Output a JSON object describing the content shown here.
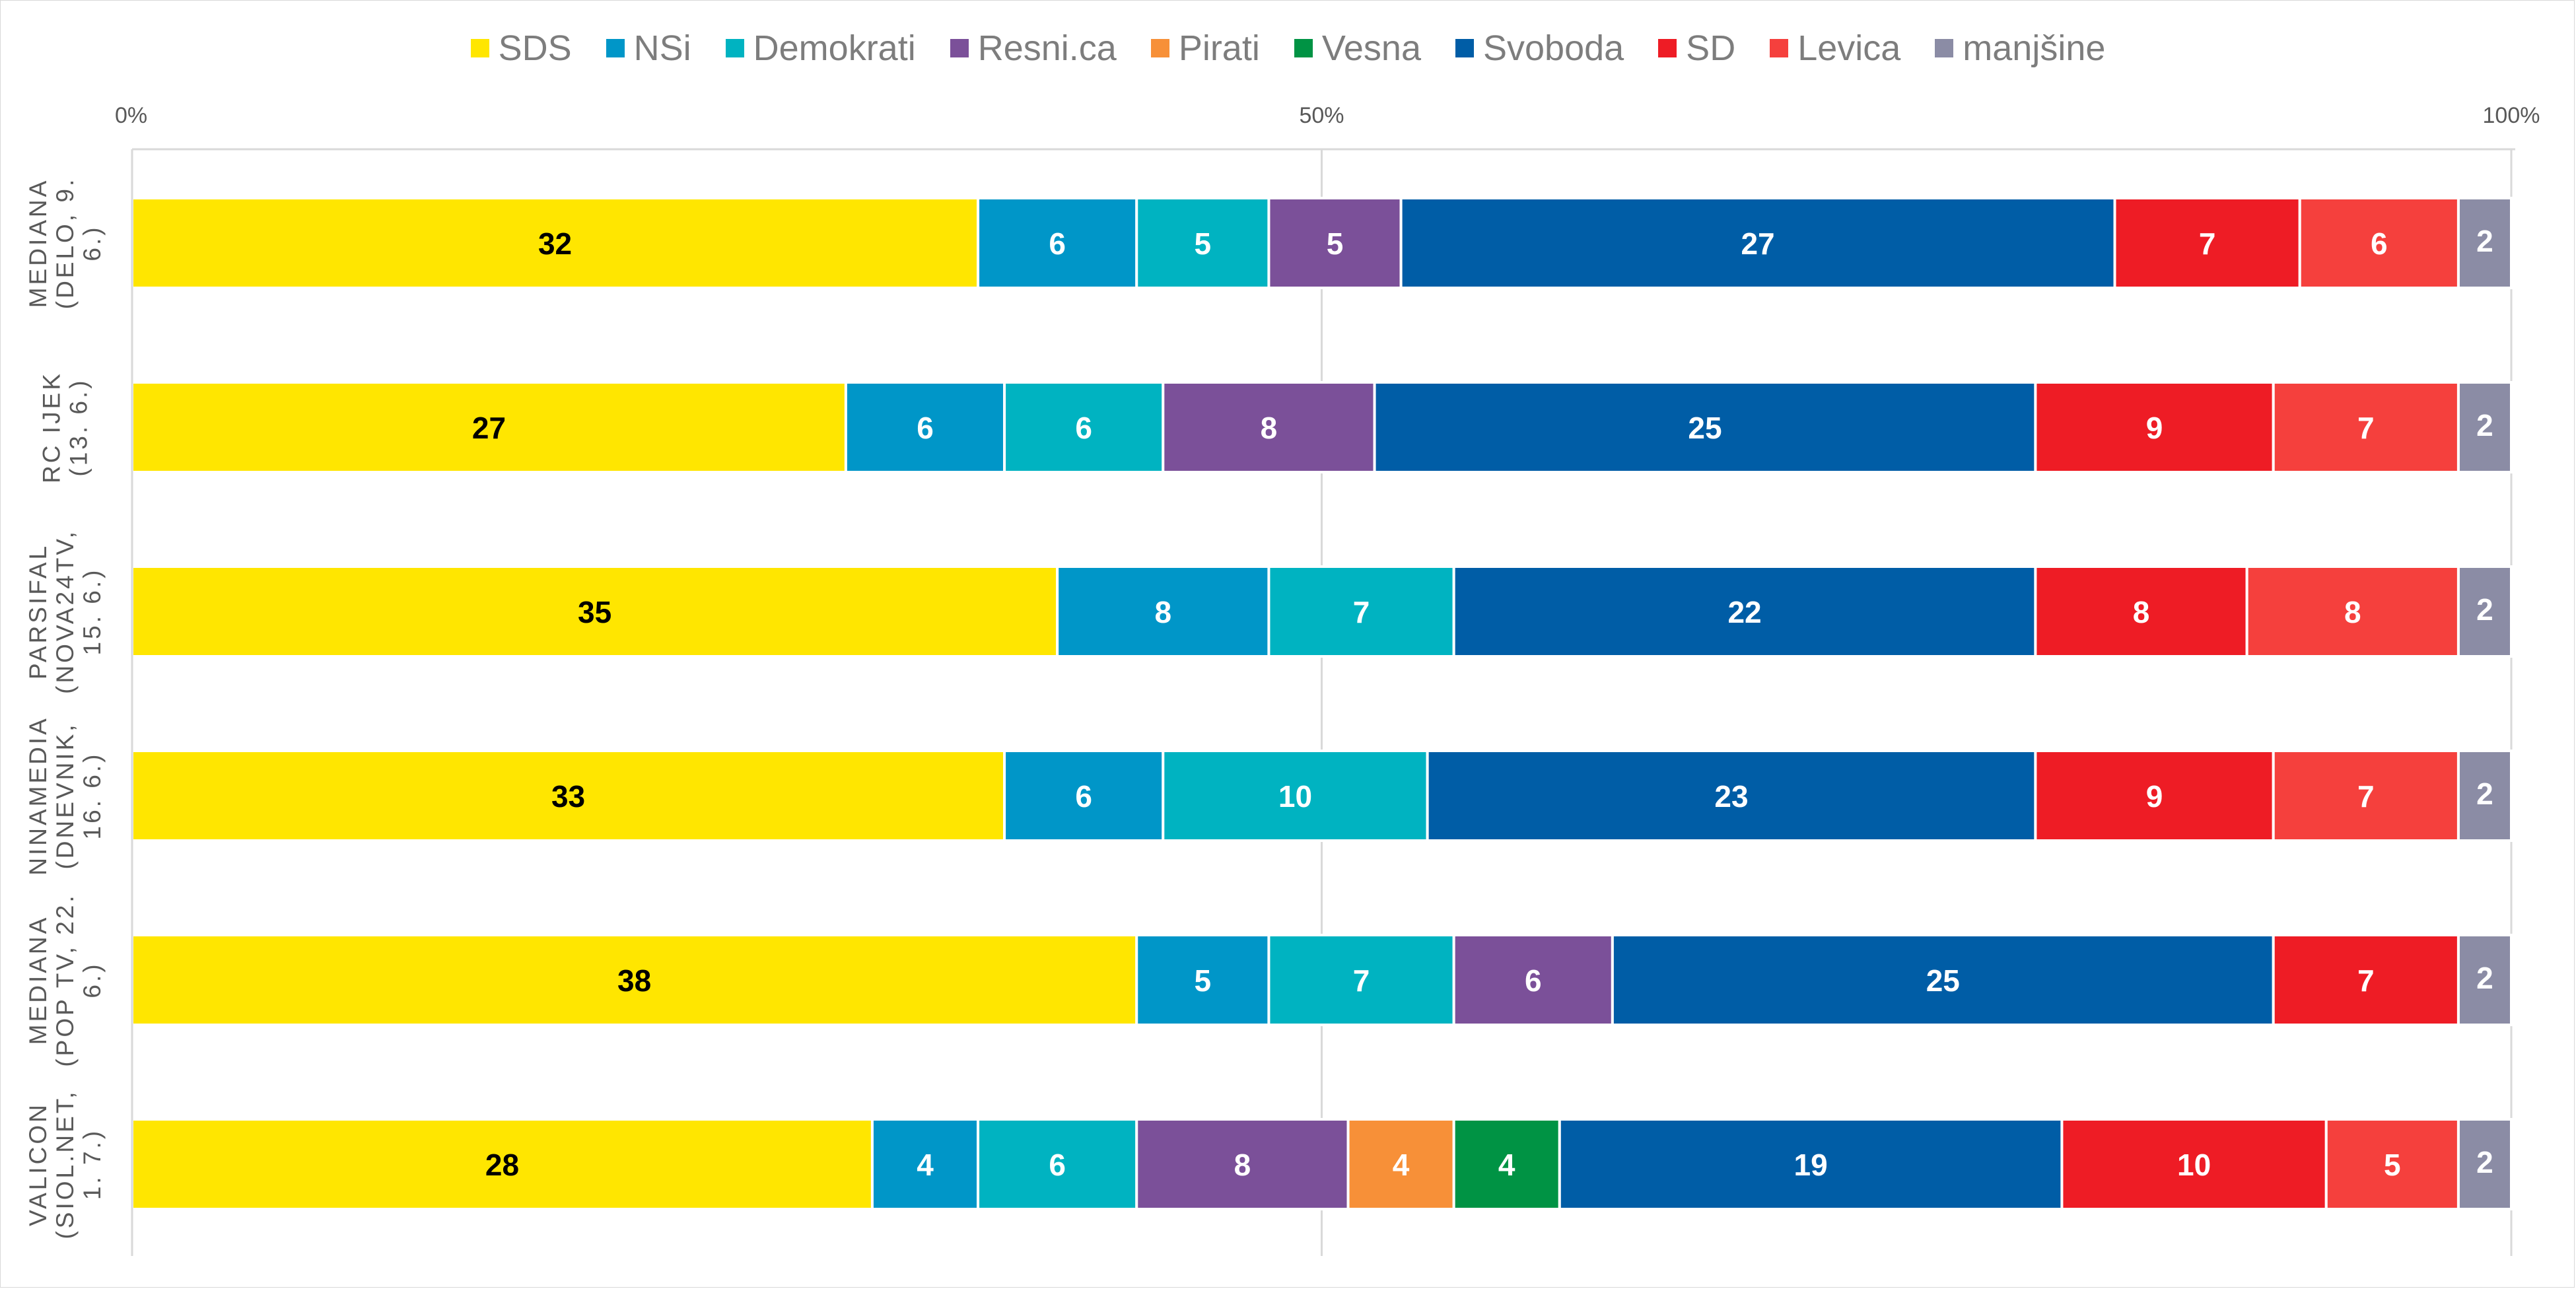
{
  "chart_data": {
    "type": "bar",
    "orientation": "horizontal",
    "stacked": "percent",
    "legend_position": "top",
    "grid": true,
    "xlim": [
      0,
      100
    ],
    "x_ticks": [
      "0%",
      "50%",
      "100%"
    ],
    "categories": [
      [
        "MEDIANA",
        "(DELO, 9.",
        "6.)"
      ],
      [
        "RC IJEK",
        "(13. 6.)"
      ],
      [
        "PARSIFAL",
        "(NOVA24TV,",
        "15. 6.)"
      ],
      [
        "NINAMEDIA",
        "(DNEVNIK,",
        "16. 6.)"
      ],
      [
        "MEDIANA",
        "(POP TV, 22.",
        "6.)"
      ],
      [
        "VALICON",
        "(SIOL.NET,",
        "1. 7.)"
      ]
    ],
    "series": [
      {
        "name": "SDS",
        "color": "#FFE600",
        "label_color": "#000000",
        "values": [
          32,
          27,
          35,
          33,
          38,
          28
        ]
      },
      {
        "name": "NSi",
        "color": "#0096C8",
        "label_color": "#FFFFFF",
        "values": [
          6,
          6,
          8,
          6,
          5,
          4
        ]
      },
      {
        "name": "Demokrati",
        "color": "#00B3C1",
        "label_color": "#FFFFFF",
        "values": [
          5,
          6,
          7,
          10,
          7,
          6
        ]
      },
      {
        "name": "Resni.ca",
        "color": "#7B5099",
        "label_color": "#FFFFFF",
        "values": [
          5,
          8,
          null,
          null,
          6,
          8
        ]
      },
      {
        "name": "Pirati",
        "color": "#F79038",
        "label_color": "#FFFFFF",
        "values": [
          null,
          null,
          null,
          null,
          null,
          4
        ]
      },
      {
        "name": "Vesna",
        "color": "#009344",
        "label_color": "#FFFFFF",
        "values": [
          null,
          null,
          null,
          null,
          null,
          4
        ]
      },
      {
        "name": "Svoboda",
        "color": "#005DA6",
        "label_color": "#FFFFFF",
        "values": [
          27,
          25,
          22,
          23,
          25,
          19
        ]
      },
      {
        "name": "SD",
        "color": "#EE1C25",
        "label_color": "#FFFFFF",
        "values": [
          7,
          9,
          8,
          9,
          7,
          10
        ]
      },
      {
        "name": "Levica",
        "color": "#F5403D",
        "label_color": "#FFFFFF",
        "values": [
          6,
          7,
          8,
          7,
          null,
          5
        ]
      },
      {
        "name": "manjšine",
        "color": "#8B8CA5",
        "label_color": "#FFFFFF",
        "values": [
          2,
          2,
          2,
          2,
          2,
          2
        ]
      }
    ]
  }
}
